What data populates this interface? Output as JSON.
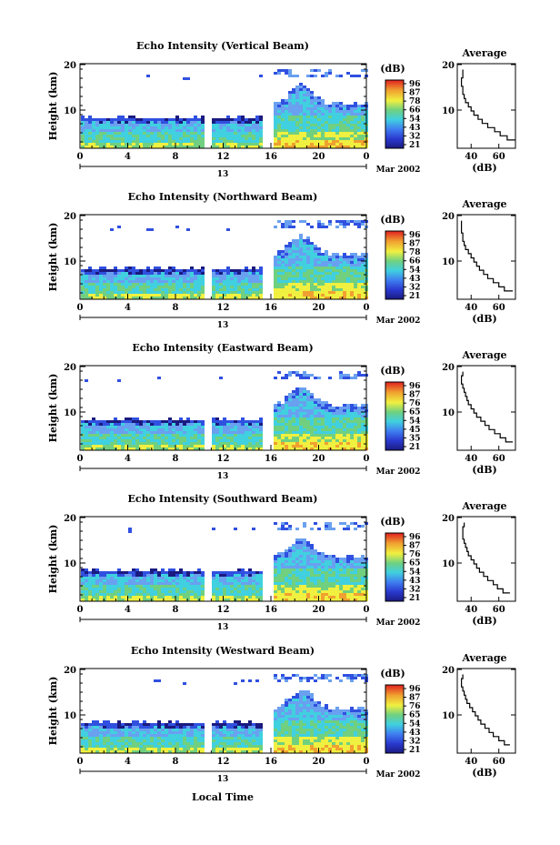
{
  "common": {
    "ylabel": "Height (km)",
    "y_ticks": [
      "20",
      "10"
    ],
    "x_ticks": [
      "0",
      "4",
      "8",
      "12",
      "16",
      "20",
      "0"
    ],
    "date_label": "13",
    "month_label": "Mar 2002",
    "colorbar_unit": "(dB)",
    "profile_title": "Average",
    "profile_xlabel": "(dB)",
    "profile_x_ticks": [
      "40",
      "60"
    ],
    "profile_y_ticks": [
      "20",
      "10"
    ],
    "xlabel": "Local Time"
  },
  "colors": {
    "dark_blue": "#1a1a80",
    "blue": "#3050e0",
    "light_blue": "#6aa0f0",
    "cyan": "#40d0e0",
    "green": "#70d080",
    "yellow": "#f0f040",
    "orange": "#f0a030",
    "red": "#e02020"
  },
  "chart_data": [
    {
      "type": "heatmap",
      "title": "Echo Intensity (Vertical Beam)",
      "colorbar_ticks": [
        "96",
        "87",
        "78",
        "66",
        "54",
        "43",
        "32",
        "21"
      ],
      "profile": {
        "x": [
          72,
          66,
          61,
          57,
          52,
          48,
          45,
          42,
          40,
          38,
          36,
          35,
          34,
          34,
          33,
          33,
          34,
          34
        ],
        "y": [
          2,
          3,
          4,
          5,
          6,
          7,
          8,
          9,
          10,
          11,
          12,
          13,
          14,
          15,
          16,
          17,
          18,
          19
        ]
      }
    },
    {
      "type": "heatmap",
      "title": "Echo Intensity (Northward Beam)",
      "colorbar_ticks": [
        "96",
        "87",
        "78",
        "66",
        "54",
        "43",
        "32",
        "21"
      ],
      "profile": {
        "x": [
          70,
          64,
          60,
          56,
          52,
          49,
          46,
          44,
          42,
          40,
          38,
          36,
          35,
          34,
          34,
          33,
          33,
          33
        ],
        "y": [
          2,
          3,
          4,
          5,
          6,
          7,
          8,
          9,
          10,
          11,
          12,
          13,
          14,
          15,
          16,
          17,
          18,
          19
        ]
      }
    },
    {
      "type": "heatmap",
      "title": "Echo Intensity (Eastward Beam)",
      "colorbar_ticks": [
        "96",
        "87",
        "76",
        "65",
        "54",
        "45",
        "35",
        "21"
      ],
      "profile": {
        "x": [
          70,
          65,
          61,
          57,
          53,
          50,
          47,
          44,
          42,
          40,
          38,
          37,
          36,
          35,
          34,
          33,
          33,
          34
        ],
        "y": [
          2,
          3,
          4,
          5,
          6,
          7,
          8,
          9,
          10,
          11,
          12,
          13,
          14,
          15,
          16,
          17,
          18,
          19
        ]
      }
    },
    {
      "type": "heatmap",
      "title": "Echo Intensity (Southward Beam)",
      "colorbar_ticks": [
        "96",
        "87",
        "76",
        "65",
        "54",
        "43",
        "32",
        "21"
      ],
      "profile": {
        "x": [
          68,
          63,
          59,
          56,
          52,
          49,
          46,
          44,
          42,
          40,
          38,
          37,
          36,
          35,
          34,
          34,
          34,
          35
        ],
        "y": [
          2,
          3,
          4,
          5,
          6,
          7,
          8,
          9,
          10,
          11,
          12,
          13,
          14,
          15,
          16,
          17,
          18,
          19
        ]
      }
    },
    {
      "type": "heatmap",
      "title": "Echo Intensity (Westward Beam)",
      "colorbar_ticks": [
        "96",
        "87",
        "76",
        "65",
        "54",
        "43",
        "32",
        "21"
      ],
      "profile": {
        "x": [
          68,
          64,
          60,
          56,
          53,
          50,
          47,
          45,
          43,
          41,
          39,
          37,
          36,
          35,
          34,
          33,
          33,
          34
        ],
        "y": [
          2,
          3,
          4,
          5,
          6,
          7,
          8,
          9,
          10,
          11,
          12,
          13,
          14,
          15,
          16,
          17,
          18,
          19
        ]
      }
    }
  ]
}
